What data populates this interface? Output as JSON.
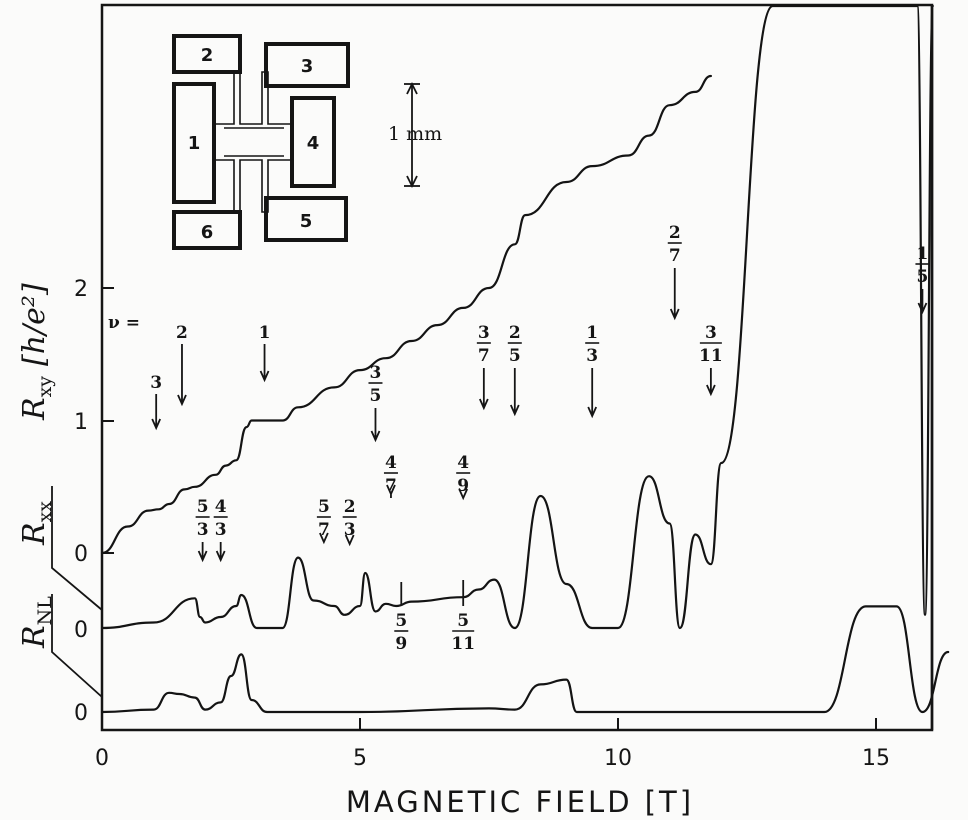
{
  "chart_data": {
    "type": "line",
    "xlabel": "MAGNETIC FIELD [T]",
    "xlim": [
      0,
      16.5
    ],
    "x_ticks": [
      "0",
      "5",
      "10",
      "15"
    ],
    "ylabel_parts": {
      "rxy": "R",
      "rxy_sub": "xy",
      "units": "[h/e²]"
    },
    "y_ticks_rxy": [
      "2",
      "1",
      "0"
    ],
    "y_ticks_rxx": [
      "0"
    ],
    "y_ticks_rnl": [
      "0"
    ],
    "series": [
      {
        "name": "Rxy",
        "label": "R",
        "label_sub": "xy",
        "x": [
          0,
          0.5,
          0.9,
          1.1,
          1.3,
          1.6,
          1.8,
          2.2,
          2.4,
          2.6,
          2.8,
          2.9,
          3.5,
          3.8,
          4.5,
          5.0,
          5.5,
          6.0,
          6.5,
          7.0,
          7.5,
          8.0,
          8.2,
          9.0,
          9.5,
          10.2,
          10.6,
          11.0,
          11.5,
          11.8
        ],
        "y": [
          0,
          0.2,
          0.32,
          0.33,
          0.37,
          0.48,
          0.5,
          0.59,
          0.66,
          0.7,
          0.95,
          1.0,
          1.0,
          1.1,
          1.25,
          1.38,
          1.47,
          1.6,
          1.72,
          1.85,
          2.0,
          2.33,
          2.55,
          2.8,
          2.92,
          3.0,
          3.15,
          3.38,
          3.48,
          3.6
        ]
      },
      {
        "name": "Rxx",
        "label": "R",
        "label_sub": "xx",
        "x": [
          0,
          1.0,
          1.8,
          1.9,
          2.0,
          2.3,
          2.6,
          2.7,
          3.0,
          3.5,
          3.8,
          4.1,
          4.5,
          4.7,
          5.0,
          5.1,
          5.3,
          5.5,
          5.7,
          6.0,
          7.0,
          7.3,
          7.6,
          8.0,
          8.5,
          9.0,
          9.5,
          10.0,
          10.6,
          11.0,
          11.2,
          11.5,
          11.8,
          12.0,
          13.0,
          15.8,
          15.95,
          16.1
        ],
        "y": [
          0,
          0.05,
          0.27,
          0.1,
          0.05,
          0.1,
          0.2,
          0.3,
          0.0,
          0.0,
          0.64,
          0.25,
          0.2,
          0.12,
          0.2,
          0.5,
          0.15,
          0.22,
          0.2,
          0.24,
          0.28,
          0.35,
          0.44,
          0.0,
          1.2,
          0.4,
          0.0,
          0.0,
          1.38,
          0.95,
          0.0,
          0.85,
          0.58,
          1.5,
          7.0,
          7.0,
          0.12,
          7.0
        ]
      },
      {
        "name": "RNL",
        "label": "R",
        "label_sub": "NL",
        "x": [
          0,
          1.0,
          1.3,
          1.5,
          1.8,
          2.0,
          2.3,
          2.5,
          2.7,
          2.9,
          3.2,
          5.0,
          7.5,
          8.0,
          8.5,
          9.0,
          9.2,
          12.0,
          14.0,
          14.8,
          15.4,
          15.9,
          16.4
        ],
        "y": [
          0,
          0.02,
          0.16,
          0.15,
          0.12,
          0.02,
          0.08,
          0.3,
          0.48,
          0.1,
          0.0,
          0.0,
          0.03,
          0.02,
          0.23,
          0.27,
          0.0,
          0.0,
          0.0,
          0.88,
          0.88,
          0.0,
          0.5
        ]
      }
    ],
    "filling_factor_prefix": "ν =",
    "filling_factors": [
      {
        "num": "3",
        "den": "",
        "x": 1.05
      },
      {
        "num": "2",
        "den": "",
        "x": 1.55
      },
      {
        "num": "1",
        "den": "",
        "x": 3.15
      },
      {
        "num": "3",
        "den": "5",
        "x": 5.3
      },
      {
        "num": "3",
        "den": "7",
        "x": 7.4
      },
      {
        "num": "2",
        "den": "5",
        "x": 8.0
      },
      {
        "num": "1",
        "den": "3",
        "x": 9.5
      },
      {
        "num": "2",
        "den": "7",
        "x": 11.1
      },
      {
        "num": "3",
        "den": "11",
        "x": 11.8
      },
      {
        "num": "1",
        "den": "5",
        "x": 15.9
      },
      {
        "num": "5",
        "den": "3",
        "x": 1.95
      },
      {
        "num": "4",
        "den": "3",
        "x": 2.3
      },
      {
        "num": "5",
        "den": "7",
        "x": 4.3
      },
      {
        "num": "2",
        "den": "3",
        "x": 4.8
      },
      {
        "num": "4",
        "den": "7",
        "x": 5.6
      },
      {
        "num": "4",
        "den": "9",
        "x": 7.0
      },
      {
        "num": "5",
        "den": "9",
        "x": 5.8
      },
      {
        "num": "5",
        "den": "11",
        "x": 7.0
      }
    ],
    "inset": {
      "contacts": [
        "1",
        "2",
        "3",
        "4",
        "5",
        "6"
      ],
      "scale_label": "1 mm"
    }
  }
}
